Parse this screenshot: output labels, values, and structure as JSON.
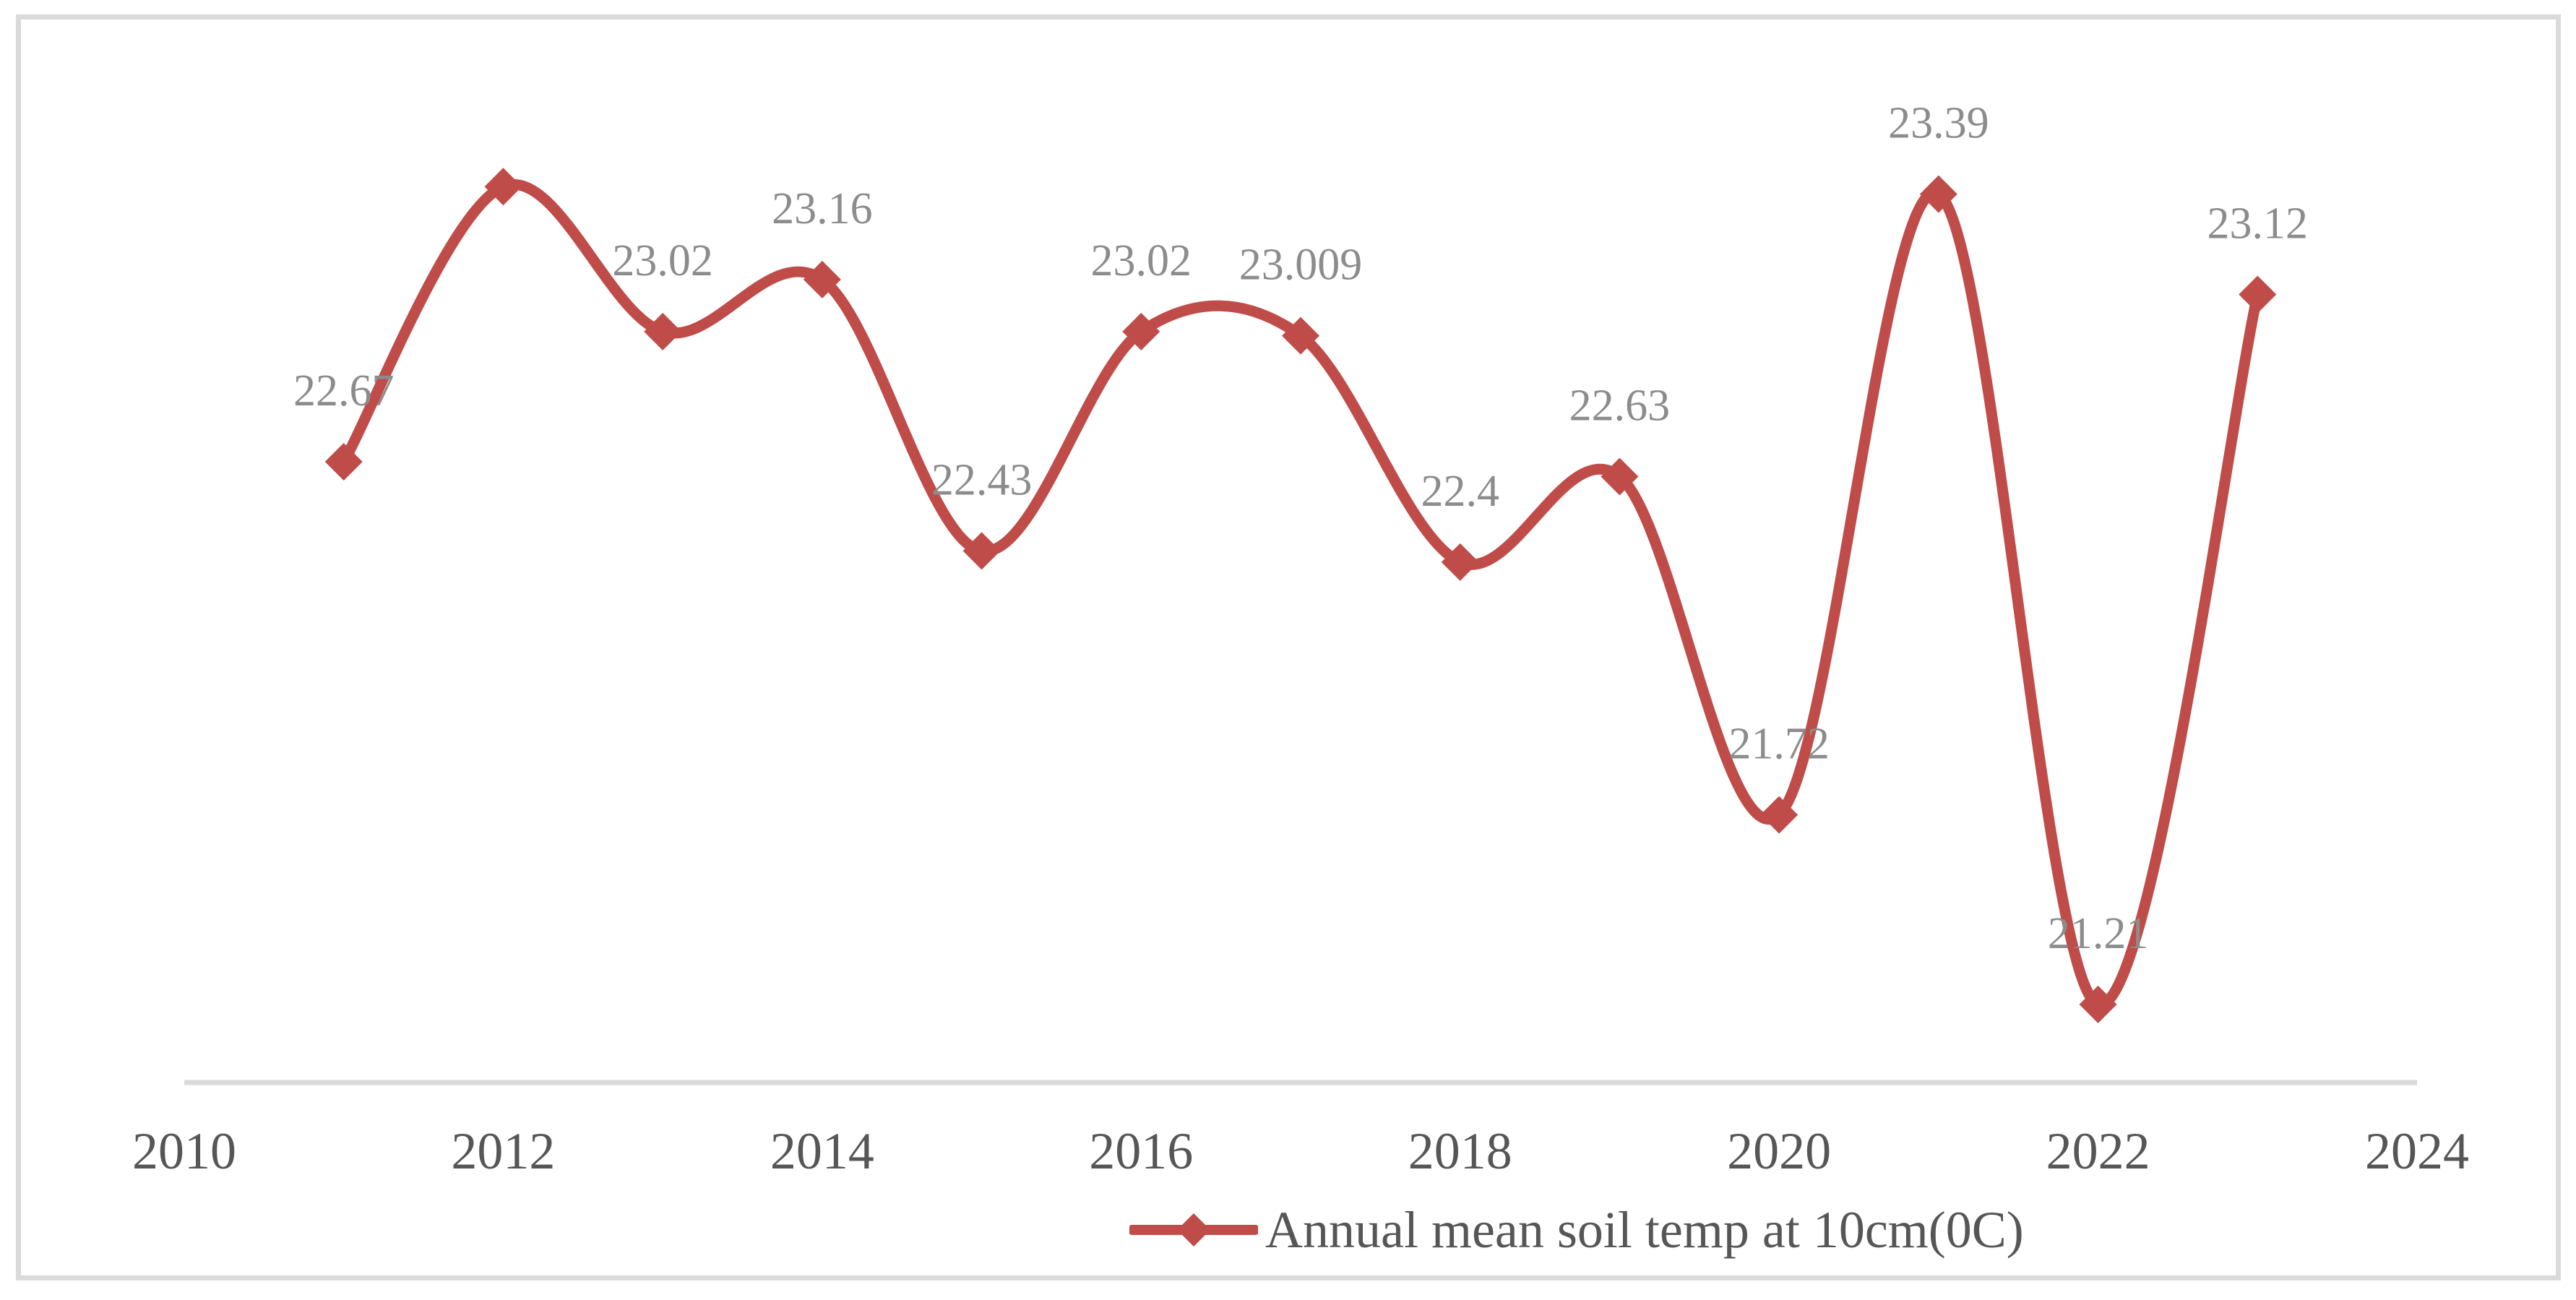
{
  "page": {
    "background_color": "#ffffff",
    "border_color": "#dadada"
  },
  "legend": {
    "label": "Annual mean soil temp at 10cm(0C)"
  },
  "chart_data": {
    "type": "line",
    "title": "",
    "xlabel": "",
    "ylabel": "",
    "smooth": true,
    "marker": "diamond",
    "grid": false,
    "legend_position": "bottom",
    "xlim": [
      2010,
      2024
    ],
    "ylim": [
      21,
      23.5
    ],
    "x_ticks": [
      2010,
      2012,
      2014,
      2016,
      2018,
      2020,
      2022,
      2024
    ],
    "y_axis_visible": false,
    "series": [
      {
        "name": "Annual mean soil temp at 10cm(0C)",
        "x": [
          2011,
          2012,
          2013,
          2014,
          2015,
          2016,
          2017,
          2018,
          2019,
          2020,
          2021,
          2022,
          2023
        ],
        "values": [
          22.67,
          23.41,
          23.02,
          23.16,
          22.43,
          23.02,
          23.009,
          22.4,
          22.63,
          21.72,
          23.39,
          21.21,
          23.12
        ],
        "point_labels": [
          "22.67",
          "",
          "23.02",
          "23.16",
          "22.43",
          "23.02",
          "23.009",
          "22.4",
          "22.63",
          "21.72",
          "23.39",
          "21.21",
          "23.12"
        ]
      }
    ],
    "colors": {
      "line": "#bf4c48",
      "marker": "#bf4c48",
      "data_label": "#8c8c8c",
      "axis_line": "#d9d9d9",
      "tick_label": "#565656",
      "legend_text": "#565656"
    }
  }
}
